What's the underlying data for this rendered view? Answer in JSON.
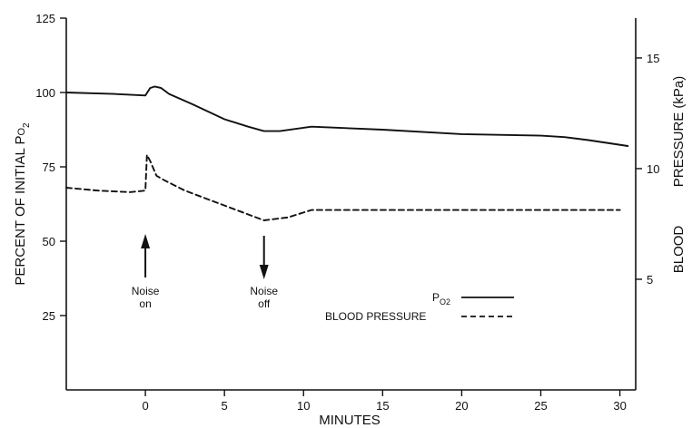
{
  "chart_data": {
    "type": "line",
    "xlabel": "MINUTES",
    "ylabel_left": [
      "PERCENT OF INITIAL  P",
      "O",
      "2"
    ],
    "ylabel_right": [
      "BLOOD",
      "PRESSURE (kPa)"
    ],
    "xlim": [
      -5,
      31
    ],
    "ylim_left": [
      0,
      125
    ],
    "ylim_right_kpa": [
      0,
      16.8
    ],
    "x_ticks": [
      0,
      5,
      10,
      15,
      20,
      25,
      30
    ],
    "y_ticks_left": [
      25,
      50,
      75,
      100,
      125
    ],
    "y_ticks_right": [
      5,
      10,
      15
    ],
    "grid": false,
    "legend_position": "bottom-right",
    "series": [
      {
        "name": "Po2",
        "legend_main": "P",
        "legend_sub": "O2",
        "style": "solid",
        "axis": "left",
        "x": [
          -5,
          -2,
          0,
          0.3,
          0.6,
          1.0,
          1.5,
          3,
          5,
          6.5,
          7.5,
          8.5,
          10.5,
          15,
          20,
          25,
          26.5,
          28,
          30.5
        ],
        "y": [
          100,
          99.5,
          99,
          101.5,
          102,
          101.5,
          99.5,
          96,
          91,
          88.5,
          87,
          87,
          88.5,
          87.5,
          86,
          85.5,
          85,
          84,
          82
        ]
      },
      {
        "name": "BLOOD PRESSURE",
        "style": "dashed",
        "axis": "left",
        "x": [
          -5,
          -3,
          -1,
          0,
          0.1,
          0.3,
          0.7,
          1.2,
          2.5,
          4,
          6,
          7.5,
          9,
          10.5,
          15,
          20,
          25,
          30
        ],
        "y": [
          68,
          67,
          66.5,
          67,
          79,
          77,
          72,
          70.5,
          67,
          64,
          60,
          57,
          58,
          60.5,
          60.5,
          60.5,
          60.5,
          60.5
        ]
      }
    ],
    "annotations": [
      {
        "text_lines": [
          "Noise",
          "on"
        ],
        "x": 0,
        "arrow": "up"
      },
      {
        "text_lines": [
          "Noise",
          "off"
        ],
        "x": 7.5,
        "arrow": "down"
      }
    ]
  }
}
